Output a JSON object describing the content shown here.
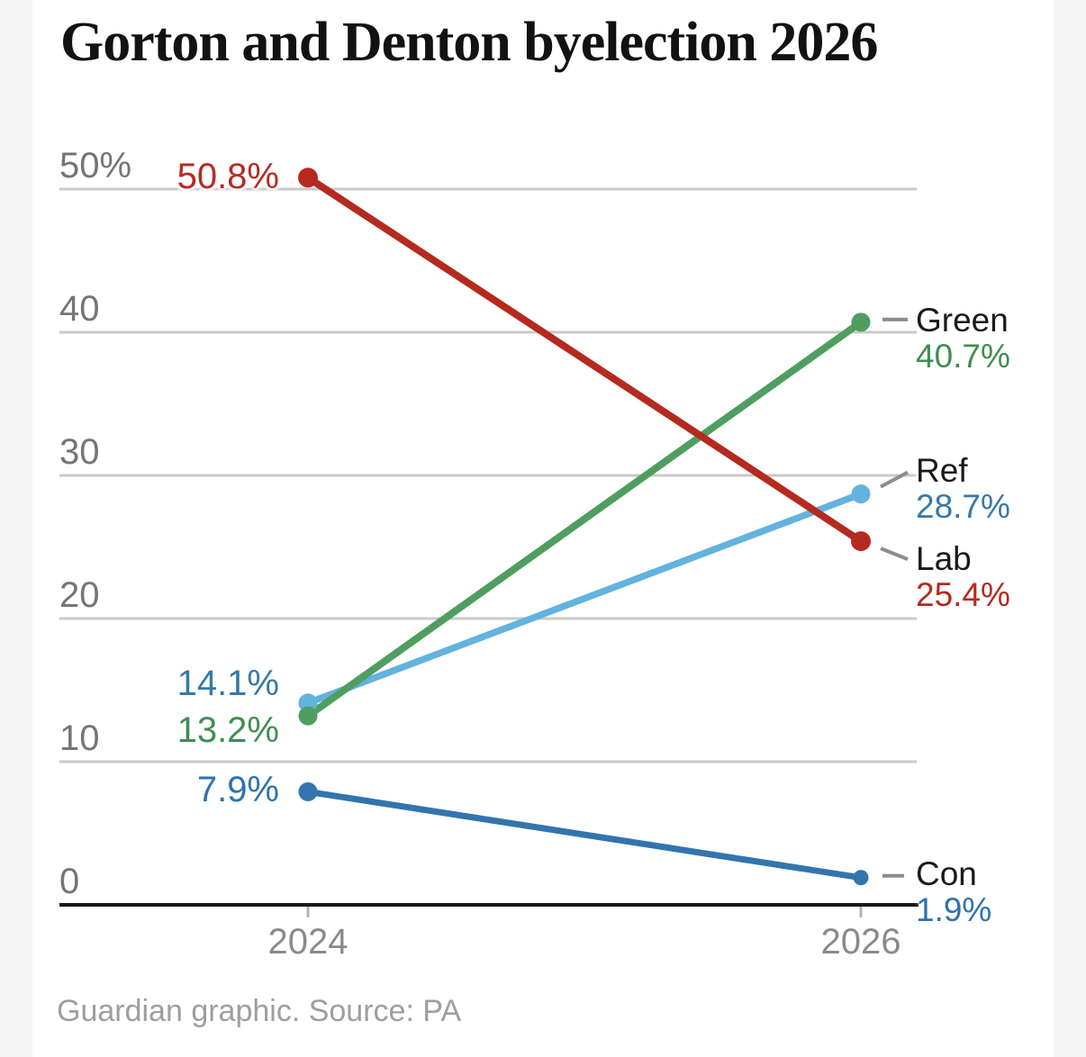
{
  "page": {
    "background_color": "#f5f5f5",
    "card_color": "#ffffff"
  },
  "header": {
    "title": "Gorton and Denton byelection 2026"
  },
  "footer": {
    "text": "Guardian graphic. Source: PA"
  },
  "chart_data": {
    "type": "line",
    "subtype": "slope-chart",
    "title": "Gorton and Denton byelection 2026",
    "x": [
      2024,
      2026
    ],
    "x_tick_labels": [
      "2024",
      "2026"
    ],
    "xlabel": "",
    "ylabel": "",
    "y_axis": {
      "unit": "%",
      "tick_values": [
        50,
        40,
        30,
        20,
        10,
        0
      ],
      "tick_labels": [
        "50%",
        "40",
        "30",
        "20",
        "10",
        "0"
      ],
      "ylim": [
        0,
        55
      ],
      "grid": true
    },
    "legend_position": "right-of-end-points",
    "series": [
      {
        "name": "Lab",
        "values": [
          50.8,
          25.4
        ],
        "start_label": "50.8%",
        "end_label": "25.4%",
        "line_color": "#b52a1e",
        "label_color": "#b42b20"
      },
      {
        "name": "Green",
        "values": [
          13.2,
          40.7
        ],
        "start_label": "13.2%",
        "end_label": "40.7%",
        "line_color": "#4f9e60",
        "label_color": "#3f8e51"
      },
      {
        "name": "Ref",
        "values": [
          14.1,
          28.7
        ],
        "start_label": "14.1%",
        "end_label": "28.7%",
        "line_color": "#62b3de",
        "label_color": "#3579a8"
      },
      {
        "name": "Con",
        "values": [
          7.9,
          1.9
        ],
        "start_label": "7.9%",
        "end_label": "1.9%",
        "line_color": "#3274ad",
        "label_color": "#2e72ad"
      }
    ],
    "source": "Guardian graphic. Source: PA"
  }
}
